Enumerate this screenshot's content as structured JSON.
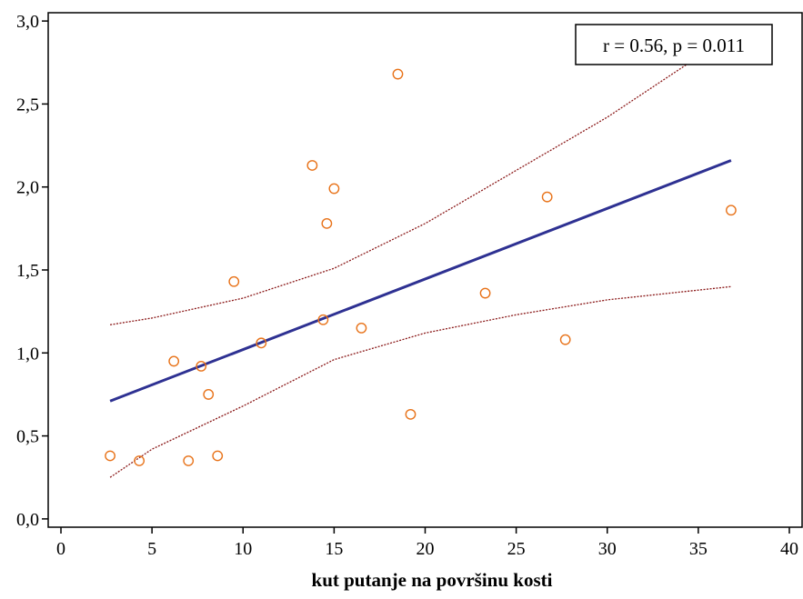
{
  "chart_data": {
    "type": "scatter",
    "title": "",
    "xlabel": "kut putanje na površinu kosti",
    "ylabel": "",
    "xlim": [
      -0.7,
      40.7
    ],
    "ylim": [
      -0.05,
      3.05
    ],
    "x_ticks": [
      0,
      5,
      10,
      15,
      20,
      25,
      30,
      35,
      40
    ],
    "x_tick_labels": [
      "0",
      "5",
      "10",
      "15",
      "20",
      "25",
      "30",
      "35",
      "40"
    ],
    "y_ticks": [
      0,
      0.5,
      1,
      1.5,
      2,
      2.5,
      3
    ],
    "y_tick_labels": [
      "0,0",
      "0,5",
      "1,0",
      "1,5",
      "2,0",
      "2,5",
      "3,0"
    ],
    "grid": false,
    "annotation": "r = 0.56, p = 0.011",
    "points": [
      {
        "x": 2.7,
        "y": 0.38
      },
      {
        "x": 4.3,
        "y": 0.35
      },
      {
        "x": 6.2,
        "y": 0.95
      },
      {
        "x": 7.0,
        "y": 0.35
      },
      {
        "x": 7.7,
        "y": 0.92
      },
      {
        "x": 8.1,
        "y": 0.75
      },
      {
        "x": 8.6,
        "y": 0.38
      },
      {
        "x": 9.5,
        "y": 1.43
      },
      {
        "x": 11.0,
        "y": 1.06
      },
      {
        "x": 13.8,
        "y": 2.13
      },
      {
        "x": 14.4,
        "y": 1.2
      },
      {
        "x": 14.6,
        "y": 1.78
      },
      {
        "x": 15.0,
        "y": 1.99
      },
      {
        "x": 16.5,
        "y": 1.15
      },
      {
        "x": 18.5,
        "y": 2.68
      },
      {
        "x": 19.2,
        "y": 0.63
      },
      {
        "x": 23.3,
        "y": 1.36
      },
      {
        "x": 26.7,
        "y": 1.94
      },
      {
        "x": 27.7,
        "y": 1.08
      },
      {
        "x": 36.8,
        "y": 1.86
      }
    ],
    "regression_line": {
      "x": [
        2.7,
        36.8
      ],
      "y": [
        0.71,
        2.16
      ]
    },
    "confidence_band": {
      "upper": [
        {
          "x": 2.7,
          "y": 1.17
        },
        {
          "x": 5,
          "y": 1.21
        },
        {
          "x": 10,
          "y": 1.33
        },
        {
          "x": 15,
          "y": 1.51
        },
        {
          "x": 20,
          "y": 1.78
        },
        {
          "x": 25,
          "y": 2.1
        },
        {
          "x": 30,
          "y": 2.42
        },
        {
          "x": 34.8,
          "y": 2.77
        }
      ],
      "lower": [
        {
          "x": 2.7,
          "y": 0.25
        },
        {
          "x": 5,
          "y": 0.42
        },
        {
          "x": 10,
          "y": 0.68
        },
        {
          "x": 15,
          "y": 0.96
        },
        {
          "x": 20,
          "y": 1.12
        },
        {
          "x": 25,
          "y": 1.23
        },
        {
          "x": 30,
          "y": 1.32
        },
        {
          "x": 36.8,
          "y": 1.4
        }
      ]
    },
    "colors": {
      "points": "#e8731a",
      "regression": "#2e3192",
      "confidence": "#8b1a1a",
      "axis": "#000000"
    }
  }
}
